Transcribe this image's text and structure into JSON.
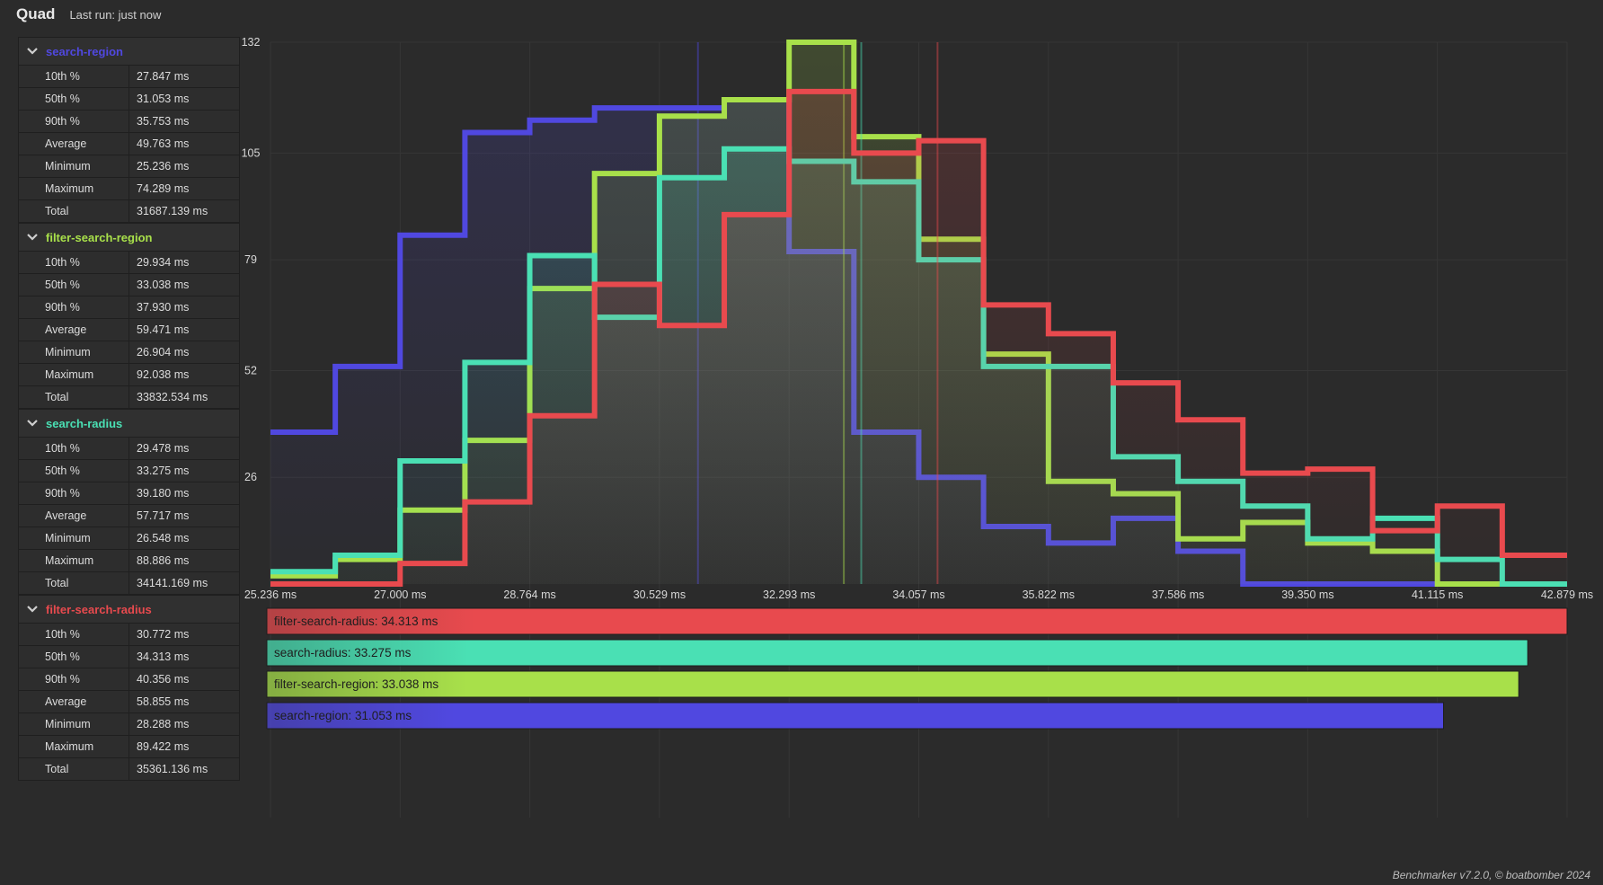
{
  "header": {
    "title": "Quad",
    "last_run": "Last run: just now"
  },
  "footer": "Benchmarker v7.2.0, © boatbomber 2024",
  "groups": [
    {
      "name": "search-region",
      "color": "#5048e0",
      "stats": [
        [
          "10th %",
          "27.847 ms"
        ],
        [
          "50th %",
          "31.053 ms"
        ],
        [
          "90th %",
          "35.753 ms"
        ],
        [
          "Average",
          "49.763 ms"
        ],
        [
          "Minimum",
          "25.236 ms"
        ],
        [
          "Maximum",
          "74.289 ms"
        ],
        [
          "Total",
          "31687.139 ms"
        ]
      ]
    },
    {
      "name": "filter-search-region",
      "color": "#a8e04a",
      "stats": [
        [
          "10th %",
          "29.934 ms"
        ],
        [
          "50th %",
          "33.038 ms"
        ],
        [
          "90th %",
          "37.930 ms"
        ],
        [
          "Average",
          "59.471 ms"
        ],
        [
          "Minimum",
          "26.904 ms"
        ],
        [
          "Maximum",
          "92.038 ms"
        ],
        [
          "Total",
          "33832.534 ms"
        ]
      ]
    },
    {
      "name": "search-radius",
      "color": "#4ae0b4",
      "stats": [
        [
          "10th %",
          "29.478 ms"
        ],
        [
          "50th %",
          "33.275 ms"
        ],
        [
          "90th %",
          "39.180 ms"
        ],
        [
          "Average",
          "57.717 ms"
        ],
        [
          "Minimum",
          "26.548 ms"
        ],
        [
          "Maximum",
          "88.886 ms"
        ],
        [
          "Total",
          "34141.169 ms"
        ]
      ]
    },
    {
      "name": "filter-search-radius",
      "color": "#e84a4e",
      "stats": [
        [
          "10th %",
          "30.772 ms"
        ],
        [
          "50th %",
          "34.313 ms"
        ],
        [
          "90th %",
          "40.356 ms"
        ],
        [
          "Average",
          "58.855 ms"
        ],
        [
          "Minimum",
          "28.288 ms"
        ],
        [
          "Maximum",
          "89.422 ms"
        ],
        [
          "Total",
          "35361.136 ms"
        ]
      ]
    }
  ],
  "chart_data": [
    {
      "type": "area",
      "title": "",
      "xlabel": "",
      "ylabel": "",
      "x_ticks": [
        "25.236 ms",
        "27.000 ms",
        "28.764 ms",
        "30.529 ms",
        "32.293 ms",
        "34.057 ms",
        "35.822 ms",
        "37.586 ms",
        "39.350 ms",
        "41.115 ms",
        "42.879 ms"
      ],
      "y_ticks": [
        "26",
        "52",
        "79",
        "105",
        "132"
      ],
      "xlim": [
        25.236,
        42.879
      ],
      "ylim": [
        0,
        132
      ],
      "grid": true,
      "bin_edges": [
        25.236,
        26.118,
        27.0,
        27.882,
        28.764,
        29.646,
        30.529,
        31.411,
        32.293,
        33.175,
        34.057,
        34.939,
        35.822,
        36.704,
        37.586,
        38.468,
        39.35,
        40.233,
        41.115,
        41.997,
        42.879
      ],
      "series": [
        {
          "name": "search-region",
          "color": "#5048e0",
          "median": 31.053,
          "values": [
            37,
            53,
            85,
            110,
            113,
            116,
            116,
            118,
            81,
            37,
            26,
            14,
            10,
            16,
            8,
            0,
            0,
            0,
            0,
            0
          ]
        },
        {
          "name": "filter-search-region",
          "color": "#a8e04a",
          "median": 33.038,
          "values": [
            2,
            6,
            18,
            35,
            72,
            100,
            114,
            118,
            132,
            109,
            84,
            56,
            25,
            22,
            11,
            15,
            10,
            8,
            0,
            0
          ]
        },
        {
          "name": "search-radius",
          "color": "#4ae0b4",
          "median": 33.275,
          "values": [
            3,
            7,
            30,
            54,
            80,
            65,
            99,
            106,
            103,
            98,
            79,
            53,
            53,
            31,
            25,
            19,
            11,
            16,
            6,
            0
          ]
        },
        {
          "name": "filter-search-radius",
          "color": "#e84a4e",
          "median": 34.313,
          "values": [
            0,
            0,
            5,
            20,
            41,
            73,
            63,
            90,
            120,
            105,
            108,
            68,
            61,
            49,
            40,
            27,
            28,
            13,
            19,
            7
          ]
        }
      ]
    },
    {
      "type": "bar",
      "title": "",
      "orientation": "horizontal",
      "categories": [
        "filter-search-radius",
        "search-radius",
        "filter-search-region",
        "search-region"
      ],
      "values": [
        34.313,
        33.275,
        33.038,
        31.053
      ],
      "labels": [
        "filter-search-radius: 34.313 ms",
        "search-radius: 33.275 ms",
        "filter-search-region: 33.038 ms",
        "search-region: 31.053 ms"
      ],
      "colors": [
        "#e84a4e",
        "#4ae0b4",
        "#a8e04a",
        "#5048e0"
      ],
      "xlim": [
        0,
        34.313
      ]
    }
  ]
}
